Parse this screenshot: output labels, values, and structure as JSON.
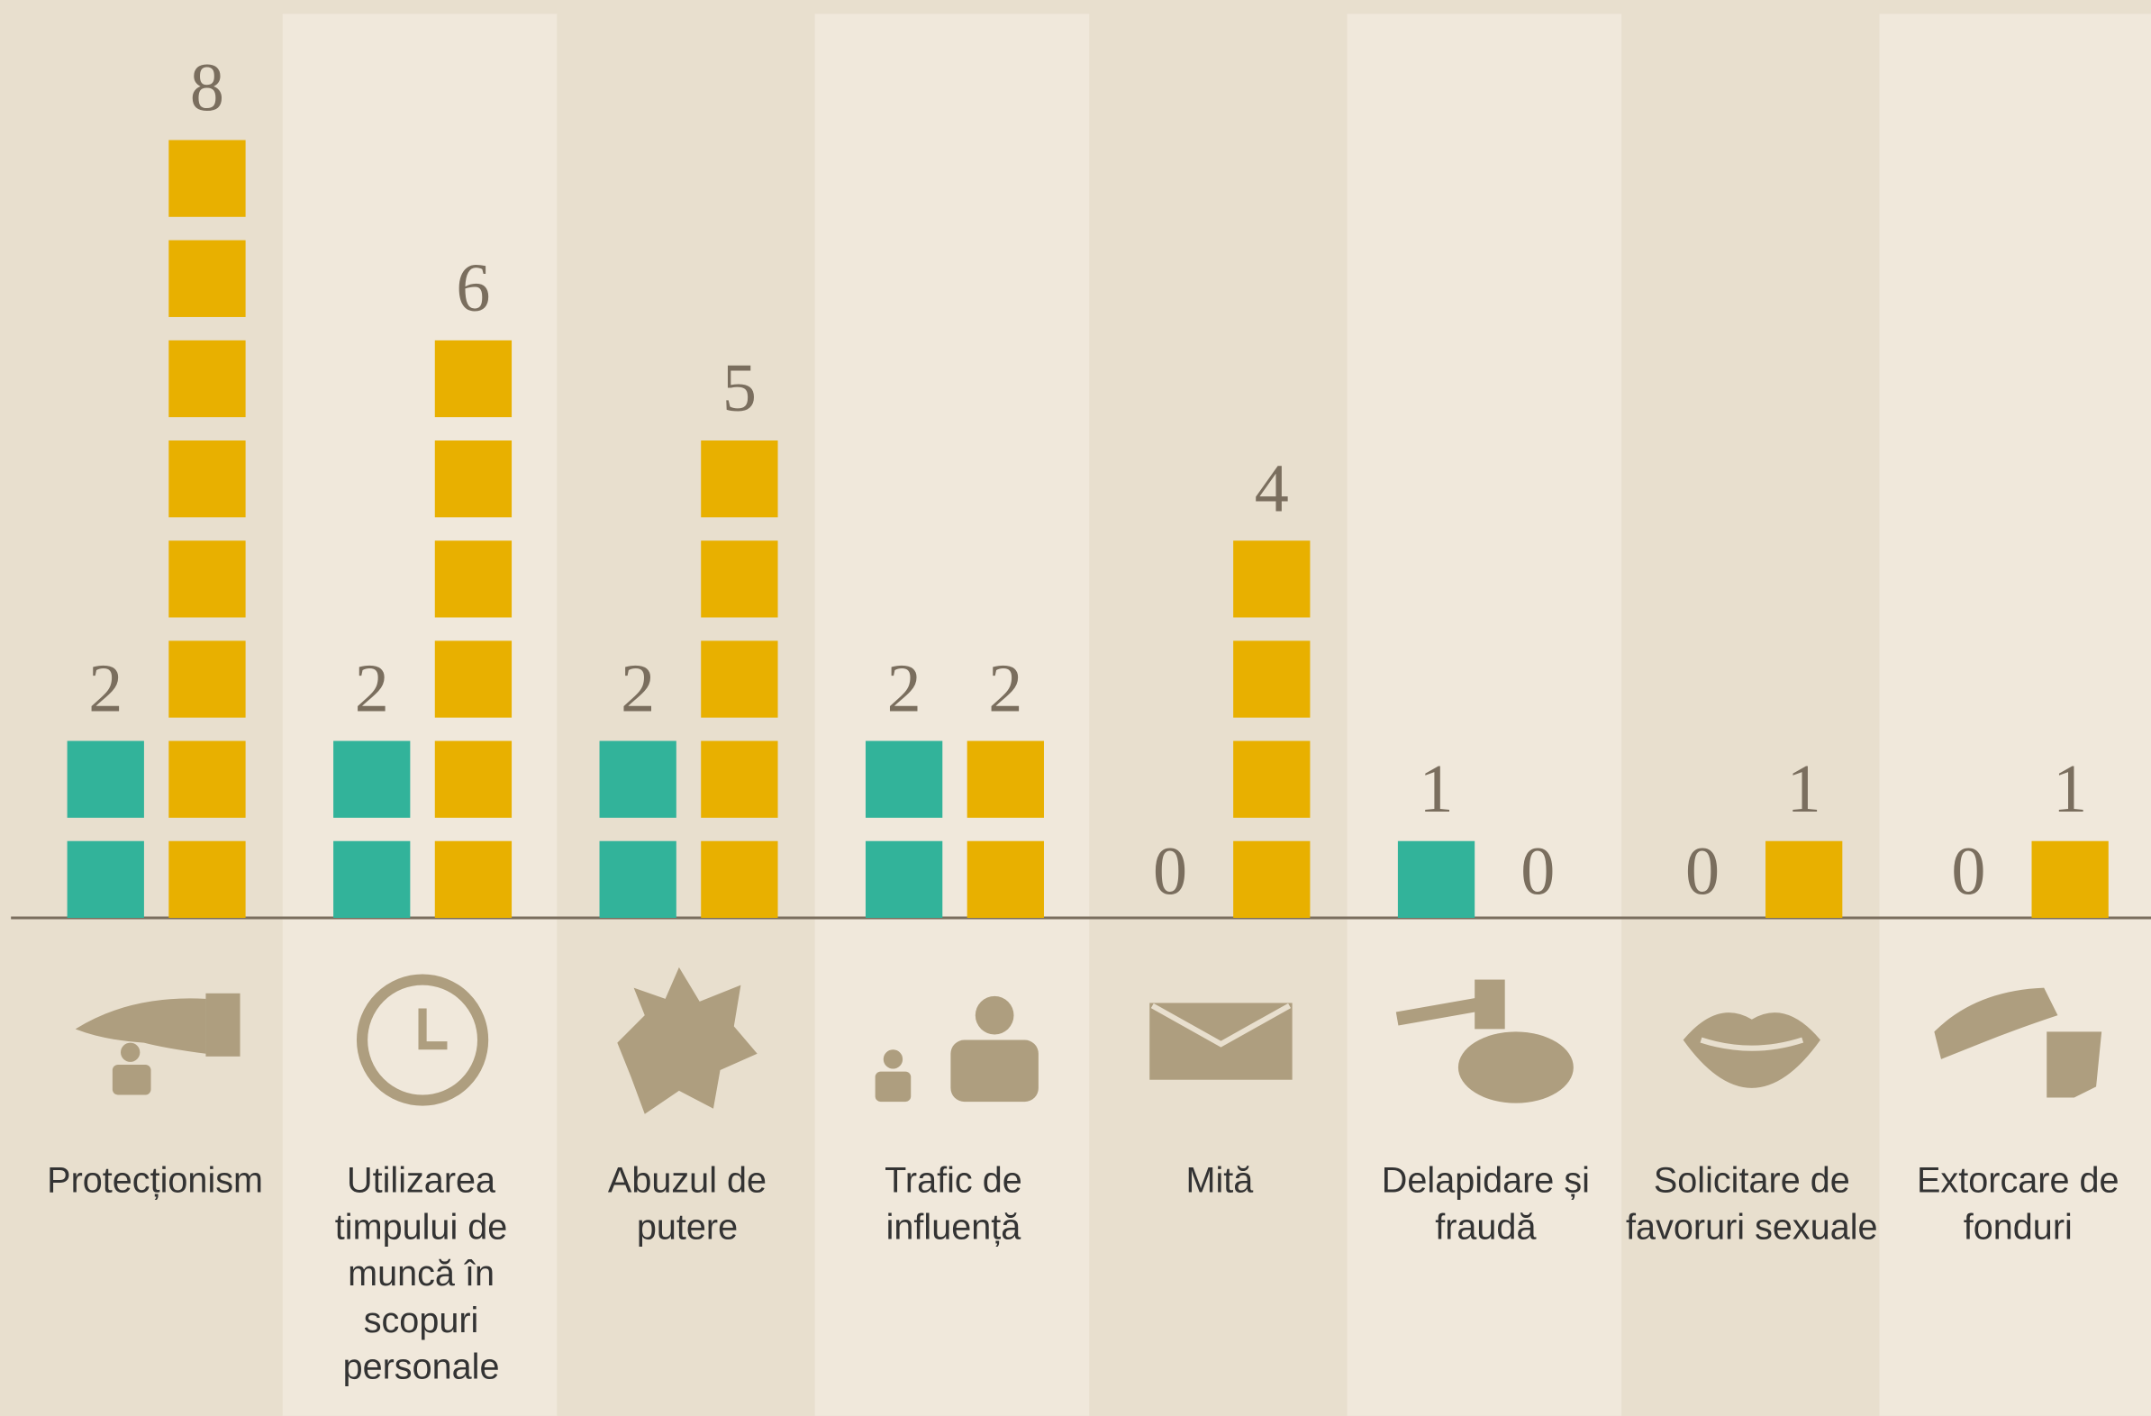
{
  "chart_data": {
    "type": "unit-bar",
    "categories": [
      "Protecționism",
      "Utilizarea timpului de muncă în scopuri personale",
      "Abuzul de putere",
      "Trafic de influență",
      "Mită",
      "Delapidare și fraudă",
      "Solicitare de favoruri sexuale",
      "Extorcare de fonduri"
    ],
    "series": [
      {
        "color": "#32b39a",
        "values": [
          2,
          2,
          2,
          2,
          0,
          1,
          0,
          0
        ]
      },
      {
        "color": "#e8b000",
        "values": [
          8,
          6,
          5,
          2,
          4,
          0,
          1,
          1
        ]
      }
    ]
  }
}
